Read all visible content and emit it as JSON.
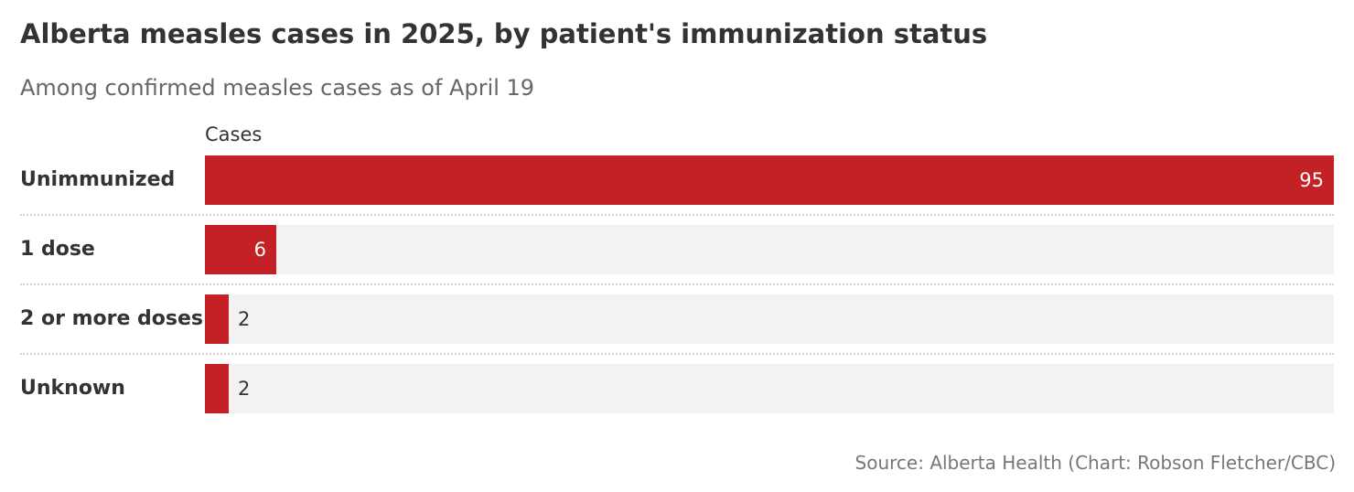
{
  "title": "Alberta measles cases in 2025, by patient's immunization status",
  "subtitle": "Among confirmed measles cases as of April 19",
  "source": "Source: Alberta Health (Chart: Robson Fletcher/CBC)",
  "colors": {
    "bar": "#c42127",
    "track": "#f2f2f2"
  },
  "chart_data": {
    "type": "bar",
    "orientation": "horizontal",
    "title": "Alberta measles cases in 2025, by patient's immunization status",
    "subtitle": "Among confirmed measles cases as of April 19",
    "column_header": "Cases",
    "categories": [
      "Unimmunized",
      "1 dose",
      "2 or more doses",
      "Unknown"
    ],
    "values": [
      95,
      6,
      2,
      2
    ],
    "xlim": [
      0,
      95
    ],
    "grid": false,
    "legend": "none"
  }
}
